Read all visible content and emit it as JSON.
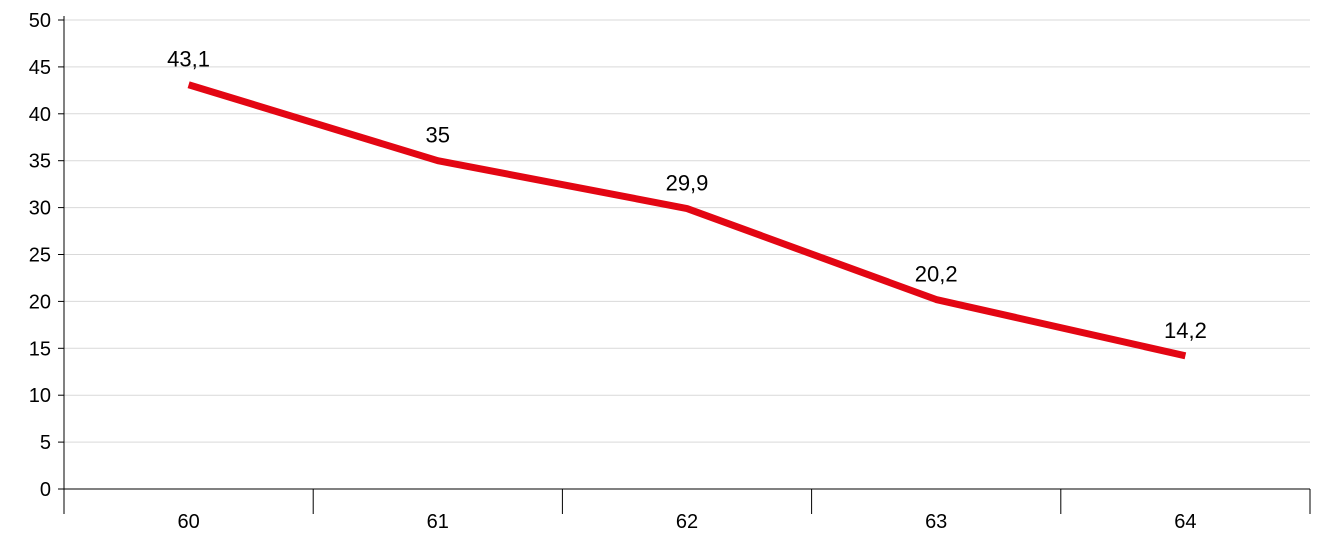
{
  "chart_data": {
    "type": "line",
    "title": "",
    "xlabel": "",
    "ylabel": "",
    "categories": [
      "60",
      "61",
      "62",
      "63",
      "64"
    ],
    "series": [
      {
        "values": [
          43.1,
          35,
          29.9,
          20.2,
          14.2
        ],
        "labels": [
          "43,1",
          "35",
          "29,9",
          "20,2",
          "14,2"
        ],
        "color": "#e30613"
      }
    ],
    "ylim": [
      0,
      50
    ],
    "yticks": [
      "0",
      "5",
      "10",
      "15",
      "20",
      "25",
      "30",
      "35",
      "40",
      "45",
      "50"
    ],
    "grid": true,
    "legend": "none"
  },
  "colors": {
    "line": "#e30613",
    "grid": "#d9d9d9",
    "axis": "#000000"
  }
}
